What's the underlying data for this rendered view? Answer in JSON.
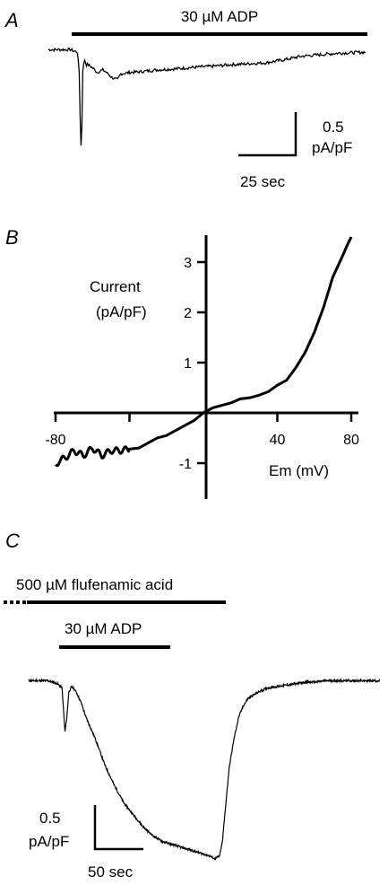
{
  "panels": {
    "a": {
      "label": "A",
      "bar_label": "30 µM ADP",
      "scale_y_value": "0.5",
      "scale_y_unit": "pA/pF",
      "scale_x": "25 sec"
    },
    "b": {
      "label": "B",
      "ylabel_1": "Current",
      "ylabel_2": "(pA/pF)",
      "xlabel": "Em (mV)"
    },
    "c": {
      "label": "C",
      "bar_label_1": "500 µM flufenamic acid",
      "bar_label_2": "30 µM ADP",
      "scale_y_value": "0.5",
      "scale_y_unit": "pA/pF",
      "scale_x": "50 sec"
    }
  },
  "chart_data": [
    {
      "type": "line",
      "panel": "A",
      "title": "",
      "scale_bars": {
        "y": "0.5 pA/pF",
        "x": "25 sec"
      },
      "ylim": [
        -2.0,
        0.2
      ],
      "series": [
        {
          "x": [
            0,
            6,
            12,
            16,
            17,
            17.5,
            18,
            18.5,
            19,
            20,
            21,
            22,
            24,
            27,
            30,
            32,
            35,
            38,
            40,
            45,
            50,
            55,
            60,
            70,
            80,
            90,
            100,
            110,
            120,
            130,
            140,
            150,
            160,
            175
          ],
          "y": [
            0.0,
            0.0,
            0.0,
            -0.05,
            -0.45,
            -1.3,
            -1.9,
            -1.5,
            -0.4,
            -0.2,
            -0.3,
            -0.3,
            -0.35,
            -0.45,
            -0.4,
            -0.45,
            -0.55,
            -0.6,
            -0.48,
            -0.45,
            -0.44,
            -0.42,
            -0.4,
            -0.38,
            -0.35,
            -0.33,
            -0.3,
            -0.28,
            -0.26,
            -0.2,
            -0.13,
            -0.1,
            -0.07,
            -0.05
          ]
        }
      ]
    },
    {
      "type": "line",
      "panel": "B",
      "title": "",
      "xlabel": "Em (mV)",
      "ylabel": "Current (pA/pF)",
      "xlim": [
        -85,
        85
      ],
      "ylim": [
        -1.2,
        3.5
      ],
      "xticks": [
        "-80",
        "40",
        "80"
      ],
      "yticks": [
        "3",
        "2",
        "1",
        "-1"
      ],
      "series": [
        {
          "x": [
            -80,
            -78,
            -75,
            -70,
            -65,
            -60,
            -55,
            -50,
            -45,
            -40,
            -35,
            -30,
            -25,
            -20,
            -15,
            -10,
            -5,
            0,
            5,
            10,
            15,
            20,
            25,
            30,
            35,
            40,
            45,
            50,
            55,
            60,
            65,
            70,
            75,
            78,
            80
          ],
          "y": [
            -1.05,
            -0.95,
            -0.9,
            -0.75,
            -0.85,
            -0.7,
            -0.85,
            -0.75,
            -0.75,
            -0.72,
            -0.7,
            -0.6,
            -0.5,
            -0.45,
            -0.35,
            -0.25,
            -0.15,
            0.0,
            0.1,
            0.15,
            0.2,
            0.28,
            0.3,
            0.35,
            0.42,
            0.55,
            0.65,
            0.9,
            1.2,
            1.6,
            2.1,
            2.7,
            3.1,
            3.35,
            3.5
          ]
        }
      ]
    },
    {
      "type": "line",
      "panel": "C",
      "title": "",
      "scale_bars": {
        "y": "0.5 pA/pF",
        "x": "50 sec"
      },
      "ylim": [
        -1.3,
        0.15
      ],
      "series": [
        {
          "x": [
            0,
            20,
            30,
            35,
            38,
            40,
            42,
            45,
            48,
            50,
            55,
            60,
            70,
            80,
            90,
            100,
            110,
            120,
            130,
            140,
            150,
            160,
            170,
            180,
            190,
            195,
            200,
            203,
            205,
            210,
            215,
            220,
            225,
            230,
            240,
            250,
            260,
            270,
            280,
            290,
            300,
            310,
            320,
            330,
            340,
            350,
            360,
            368
          ],
          "y": [
            0.0,
            0.0,
            -0.02,
            -0.05,
            -0.35,
            -0.25,
            -0.08,
            -0.04,
            -0.06,
            -0.08,
            -0.15,
            -0.25,
            -0.4,
            -0.58,
            -0.72,
            -0.84,
            -0.92,
            -1.0,
            -1.06,
            -1.1,
            -1.12,
            -1.14,
            -1.16,
            -1.18,
            -1.2,
            -1.22,
            -1.2,
            -1.1,
            -0.95,
            -0.6,
            -0.4,
            -0.25,
            -0.17,
            -0.12,
            -0.08,
            -0.05,
            -0.04,
            -0.03,
            -0.02,
            -0.01,
            -0.01,
            0.0,
            0.0,
            0.0,
            0.0,
            0.0,
            0.0,
            0.0
          ]
        }
      ]
    }
  ]
}
